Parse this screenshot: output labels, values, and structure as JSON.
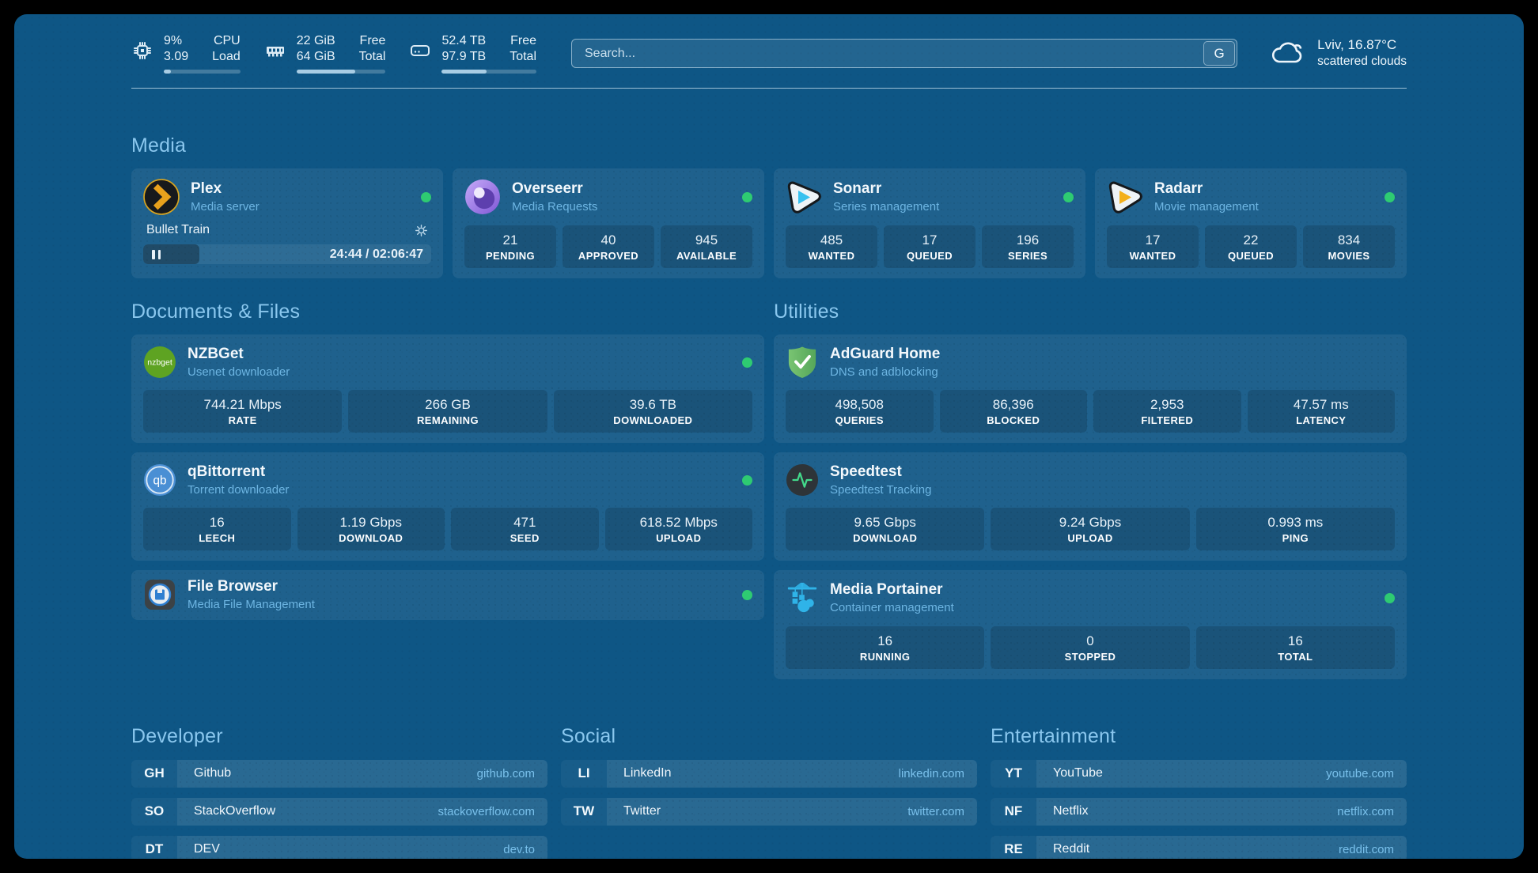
{
  "colors": {
    "background": "#0e5685",
    "section_title": "#8ac7ee",
    "status_online": "#2ecb72",
    "link_domain": "#79c0eb"
  },
  "header": {
    "stats": [
      {
        "name": "cpu",
        "v1": "9%",
        "v2": "3.09",
        "l1": "CPU",
        "l2": "Load",
        "progress_pct": 9
      },
      {
        "name": "memory",
        "v1": "22 GiB",
        "v2": "64 GiB",
        "l1": "Free",
        "l2": "Total",
        "progress_pct": 66
      },
      {
        "name": "storage",
        "v1": "52.4 TB",
        "v2": "97.9 TB",
        "l1": "Free",
        "l2": "Total",
        "progress_pct": 47
      }
    ],
    "search": {
      "placeholder": "Search...",
      "button_label": "G"
    },
    "weather": {
      "title": "Lviv, 16.87°C",
      "subtitle": "scattered clouds"
    }
  },
  "media": {
    "title": "Media",
    "cards": [
      {
        "title": "Plex",
        "subtitle": "Media server",
        "status": "online",
        "icon": "plex-icon",
        "player": {
          "now_playing": "Bullet Train",
          "time": "24:44 / 02:06:47",
          "progress_pct": 19.5
        }
      },
      {
        "title": "Overseerr",
        "subtitle": "Media Requests",
        "status": "online",
        "icon": "overseerr-icon",
        "stats": [
          {
            "value": "21",
            "label": "PENDING"
          },
          {
            "value": "40",
            "label": "APPROVED"
          },
          {
            "value": "945",
            "label": "AVAILABLE"
          }
        ]
      },
      {
        "title": "Sonarr",
        "subtitle": "Series management",
        "status": "online",
        "icon": "sonarr-icon",
        "stats": [
          {
            "value": "485",
            "label": "WANTED"
          },
          {
            "value": "17",
            "label": "QUEUED"
          },
          {
            "value": "196",
            "label": "SERIES"
          }
        ]
      },
      {
        "title": "Radarr",
        "subtitle": "Movie management",
        "status": "online",
        "icon": "radarr-icon",
        "stats": [
          {
            "value": "17",
            "label": "WANTED"
          },
          {
            "value": "22",
            "label": "QUEUED"
          },
          {
            "value": "834",
            "label": "MOVIES"
          }
        ]
      }
    ]
  },
  "documents": {
    "title": "Documents & Files",
    "cards": [
      {
        "title": "NZBGet",
        "subtitle": "Usenet downloader",
        "status": "online",
        "icon": "nzbget-icon",
        "stats": [
          {
            "value": "744.21 Mbps",
            "label": "RATE"
          },
          {
            "value": "266 GB",
            "label": "REMAINING"
          },
          {
            "value": "39.6 TB",
            "label": "DOWNLOADED"
          }
        ]
      },
      {
        "title": "qBittorrent",
        "subtitle": "Torrent downloader",
        "status": "online",
        "icon": "qbittorrent-icon",
        "stats": [
          {
            "value": "16",
            "label": "LEECH"
          },
          {
            "value": "1.19 Gbps",
            "label": "DOWNLOAD"
          },
          {
            "value": "471",
            "label": "SEED"
          },
          {
            "value": "618.52 Mbps",
            "label": "UPLOAD"
          }
        ]
      },
      {
        "title": "File Browser",
        "subtitle": "Media File Management",
        "status": "online",
        "icon": "filebrowser-icon"
      }
    ]
  },
  "utilities": {
    "title": "Utilities",
    "cards": [
      {
        "title": "AdGuard Home",
        "subtitle": "DNS and adblocking",
        "icon": "adguard-icon",
        "stats": [
          {
            "value": "498,508",
            "label": "QUERIES"
          },
          {
            "value": "86,396",
            "label": "BLOCKED"
          },
          {
            "value": "2,953",
            "label": "FILTERED"
          },
          {
            "value": "47.57 ms",
            "label": "LATENCY"
          }
        ]
      },
      {
        "title": "Speedtest",
        "subtitle": "Speedtest Tracking",
        "icon": "speedtest-icon",
        "stats": [
          {
            "value": "9.65 Gbps",
            "label": "DOWNLOAD"
          },
          {
            "value": "9.24 Gbps",
            "label": "UPLOAD"
          },
          {
            "value": "0.993 ms",
            "label": "PING"
          }
        ]
      },
      {
        "title": "Media Portainer",
        "subtitle": "Container management",
        "status": "online",
        "icon": "portainer-icon",
        "stats": [
          {
            "value": "16",
            "label": "RUNNING"
          },
          {
            "value": "0",
            "label": "STOPPED"
          },
          {
            "value": "16",
            "label": "TOTAL"
          }
        ]
      }
    ]
  },
  "bookmarks": [
    {
      "title": "Developer",
      "links": [
        {
          "abbr": "GH",
          "name": "Github",
          "domain": "github.com"
        },
        {
          "abbr": "SO",
          "name": "StackOverflow",
          "domain": "stackoverflow.com"
        },
        {
          "abbr": "DT",
          "name": "DEV",
          "domain": "dev.to"
        }
      ]
    },
    {
      "title": "Social",
      "links": [
        {
          "abbr": "LI",
          "name": "LinkedIn",
          "domain": "linkedin.com"
        },
        {
          "abbr": "TW",
          "name": "Twitter",
          "domain": "twitter.com"
        }
      ]
    },
    {
      "title": "Entertainment",
      "links": [
        {
          "abbr": "YT",
          "name": "YouTube",
          "domain": "youtube.com"
        },
        {
          "abbr": "NF",
          "name": "Netflix",
          "domain": "netflix.com"
        },
        {
          "abbr": "RE",
          "name": "Reddit",
          "domain": "reddit.com"
        }
      ]
    }
  ]
}
